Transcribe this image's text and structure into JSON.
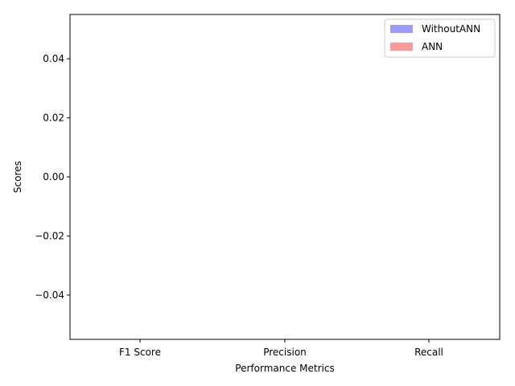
{
  "chart_data": {
    "type": "bar",
    "title": "",
    "xlabel": "Performance Metrics",
    "ylabel": "Scores",
    "categories": [
      "F1 Score",
      "Precision",
      "Recall"
    ],
    "series": [
      {
        "name": "WithoutANN",
        "values": [
          0,
          0,
          0
        ],
        "color": "#9999ff"
      },
      {
        "name": "ANN",
        "values": [
          0,
          0,
          0
        ],
        "color": "#ff9999"
      }
    ],
    "ylim": [
      -0.055,
      0.055
    ],
    "yticks": [
      0.04,
      0.02,
      0.0,
      -0.02,
      -0.04
    ],
    "ytick_labels": [
      "0.04",
      "0.02",
      "0.00",
      "−0.02",
      "−0.04"
    ],
    "grid": false,
    "legend_position": "top-right"
  }
}
